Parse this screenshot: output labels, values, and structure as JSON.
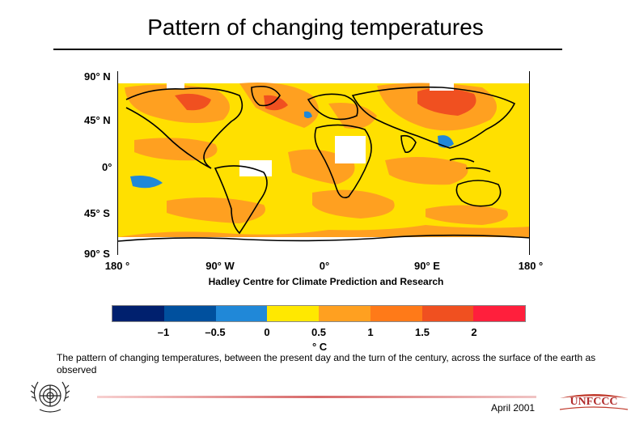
{
  "slide": {
    "title": "Pattern of changing temperatures",
    "attribution": "Hadley Centre for Climate Prediction and Research",
    "caption": "The pattern of changing temperatures, between the present day and the turn of the century, across the surface of the earth as observed",
    "date": "April 2001",
    "logo_left": "united-nations-emblem",
    "logo_right": "UNFCCC"
  },
  "map": {
    "lat_labels": [
      "90° N",
      "45° N",
      "0°",
      "45° S",
      "90° S"
    ],
    "lon_labels": [
      "180 °",
      "90° W",
      "0°",
      "90° E",
      "180 °"
    ],
    "base_color": "#ffe000",
    "coastline_color": "#000000"
  },
  "legend": {
    "unit": "° C",
    "ticks": [
      "–1",
      "–0.5",
      "0",
      "0.5",
      "1",
      "1.5",
      "2"
    ],
    "tick_values": [
      -1,
      -0.5,
      0,
      0.5,
      1,
      1.5,
      2
    ],
    "bins": [
      {
        "min": -1.5,
        "max": -1.0,
        "color": "#00206e"
      },
      {
        "min": -1.0,
        "max": -0.5,
        "color": "#00509e"
      },
      {
        "min": -0.5,
        "max": 0.0,
        "color": "#2088d8"
      },
      {
        "min": 0.0,
        "max": 0.5,
        "color": "#ffe800"
      },
      {
        "min": 0.5,
        "max": 1.0,
        "color": "#ffa020"
      },
      {
        "min": 1.0,
        "max": 1.5,
        "color": "#ff7a18"
      },
      {
        "min": 1.5,
        "max": 2.0,
        "color": "#f05020"
      },
      {
        "min": 2.0,
        "max": 2.5,
        "color": "#ff1f3c"
      }
    ]
  }
}
